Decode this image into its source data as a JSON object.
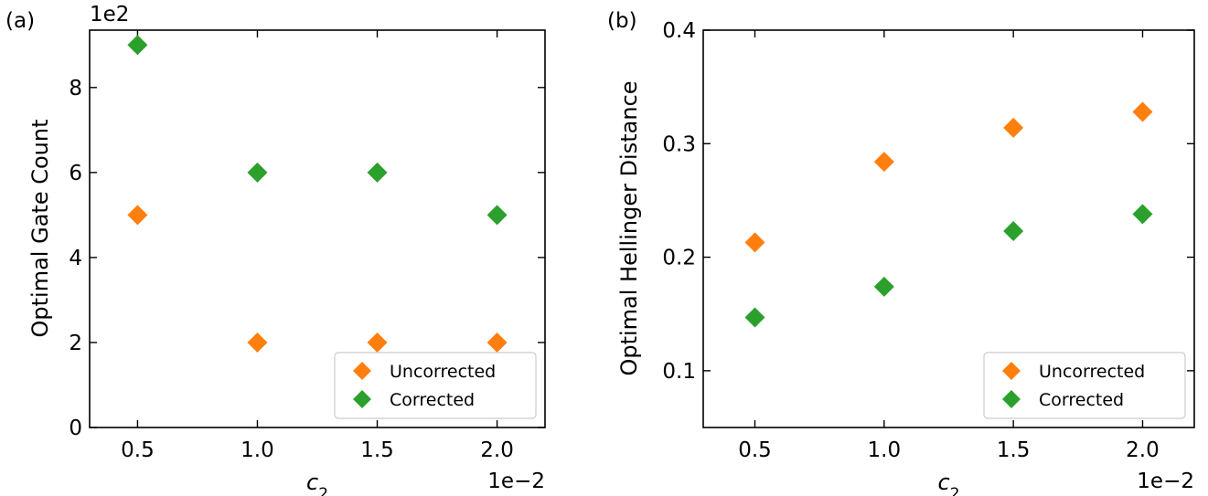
{
  "chart_data": [
    {
      "type": "scatter",
      "panel_label": "(a)",
      "xlabel": "c",
      "xlabel_sub": "2",
      "ylabel": "Optimal Gate Count",
      "x_exponent_label": "1e−2",
      "y_exponent_label": "1e2",
      "xlim": [
        0.3,
        2.2
      ],
      "ylim": [
        0,
        9.35
      ],
      "xticks": [
        0.5,
        1.0,
        1.5,
        2.0
      ],
      "xtick_labels": [
        "0.5",
        "1.0",
        "1.5",
        "2.0"
      ],
      "yticks": [
        0,
        2,
        4,
        6,
        8
      ],
      "ytick_labels": [
        "0",
        "2",
        "4",
        "6",
        "8"
      ],
      "grid": false,
      "legend_position": "lower right",
      "series": [
        {
          "name": "Uncorrected",
          "color": "#ff7f0e",
          "marker": "diamond",
          "x": [
            0.5,
            1.0,
            1.5,
            2.0
          ],
          "y": [
            5,
            2,
            2,
            2
          ]
        },
        {
          "name": "Corrected",
          "color": "#2ca02c",
          "marker": "diamond",
          "x": [
            0.5,
            1.0,
            1.5,
            2.0
          ],
          "y": [
            9,
            6,
            6,
            5
          ]
        }
      ]
    },
    {
      "type": "scatter",
      "panel_label": "(b)",
      "xlabel": "c",
      "xlabel_sub": "2",
      "ylabel": "Optimal Hellinger Distance",
      "x_exponent_label": "1e−2",
      "xlim": [
        0.3,
        2.2
      ],
      "ylim": [
        0.05,
        0.4
      ],
      "xticks": [
        0.5,
        1.0,
        1.5,
        2.0
      ],
      "xtick_labels": [
        "0.5",
        "1.0",
        "1.5",
        "2.0"
      ],
      "yticks": [
        0.1,
        0.2,
        0.3,
        0.4
      ],
      "ytick_labels": [
        "0.1",
        "0.2",
        "0.3",
        "0.4"
      ],
      "grid": false,
      "legend_position": "lower right",
      "series": [
        {
          "name": "Uncorrected",
          "color": "#ff7f0e",
          "marker": "diamond",
          "x": [
            0.5,
            1.0,
            1.5,
            2.0
          ],
          "y": [
            0.213,
            0.284,
            0.314,
            0.328
          ]
        },
        {
          "name": "Corrected",
          "color": "#2ca02c",
          "marker": "diamond",
          "x": [
            0.5,
            1.0,
            1.5,
            2.0
          ],
          "y": [
            0.147,
            0.174,
            0.223,
            0.238
          ]
        }
      ]
    }
  ]
}
